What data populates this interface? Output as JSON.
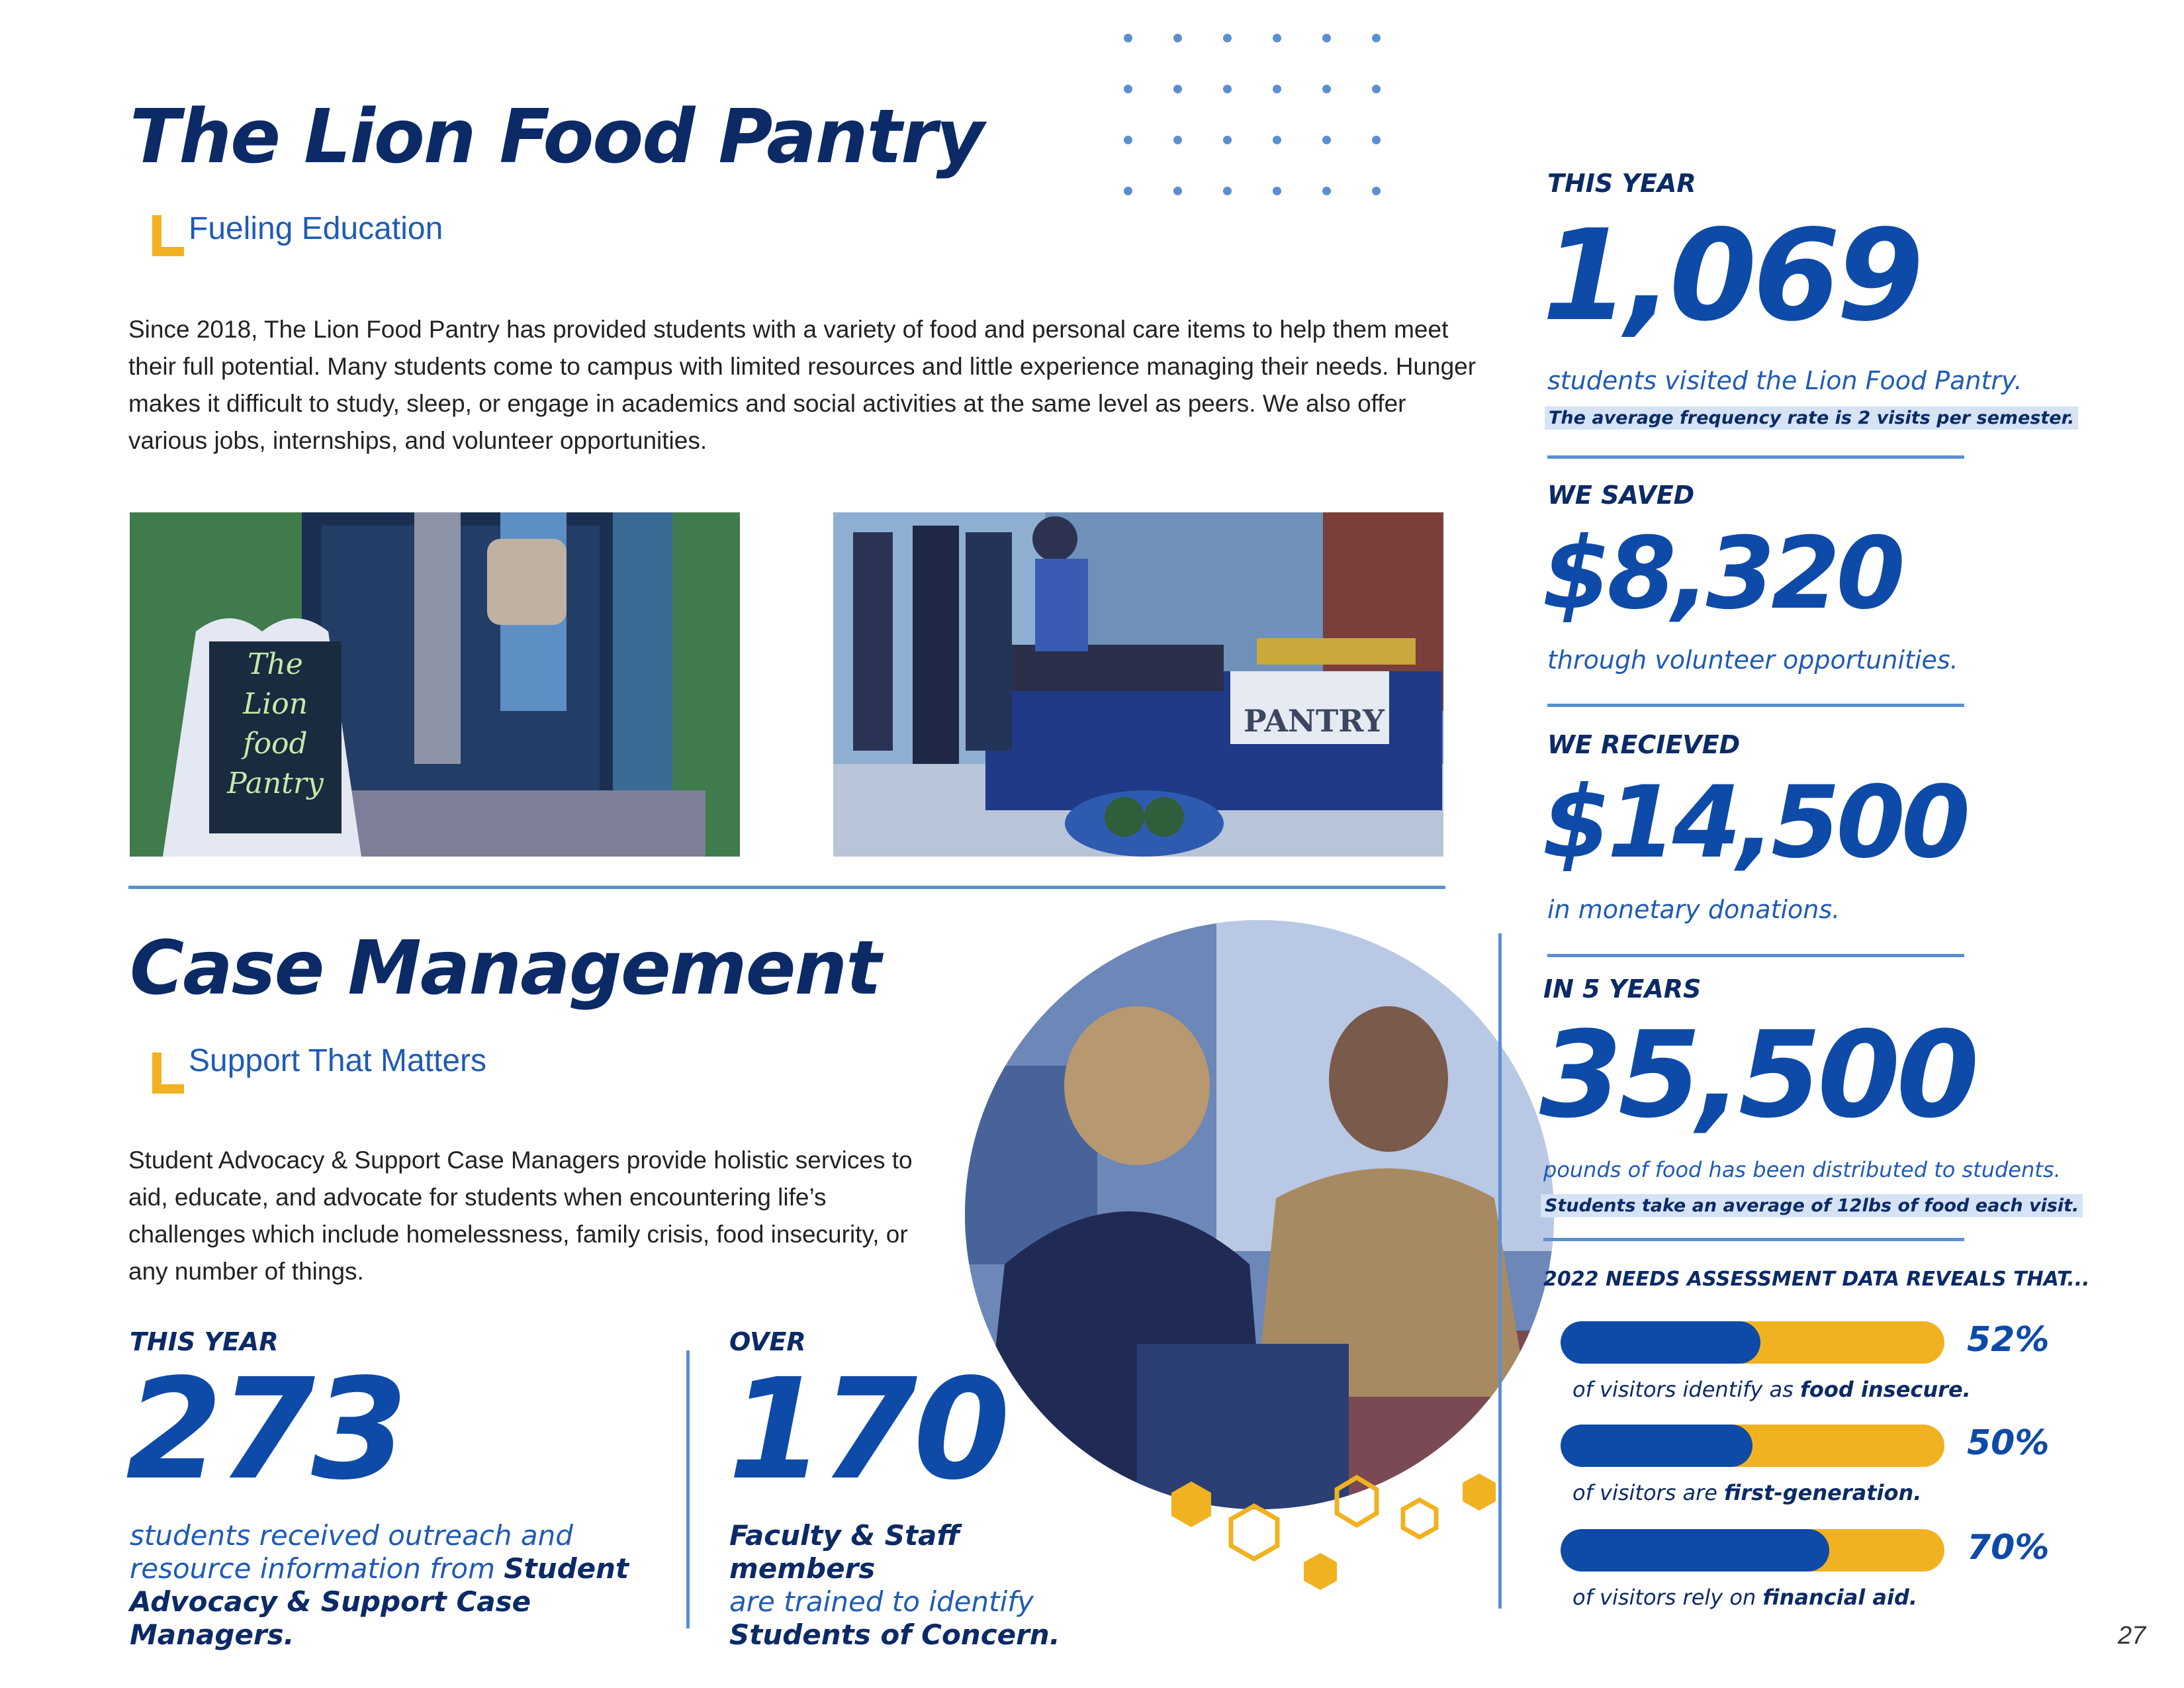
{
  "pantry": {
    "title": "The Lion Food Pantry",
    "subtitle": "Fueling Education",
    "body": "Since 2018, The Lion Food Pantry has provided students with a variety of food and personal care items to help them meet their full potential. Many students come to campus with limited resources and little experience managing their needs. Hunger makes it difficult to study, sleep, or engage in academics and social activities at the same level as peers. We also offer various jobs, internships, and volunteer opportunities.",
    "photo1_sign": [
      "The",
      "Lion",
      "food",
      "Pantry"
    ],
    "photo2_sign": "PANTRY"
  },
  "case": {
    "title": "Case Management",
    "subtitle": "Support That Matters",
    "body": "Student Advocacy & Support Case Managers provide holistic services to aid, educate, and advocate for students when encountering life’s challenges which include homelessness, family crisis, food insecurity, or any number of things.",
    "stat1": {
      "label": "THIS YEAR",
      "value": "273",
      "line1": "students received outreach and",
      "line2_plain": "resource information from ",
      "line2_bold": "Student",
      "line3_bold": "Advocacy & Support Case Managers."
    },
    "stat2": {
      "label": "OVER",
      "value": "170",
      "line1_bold": "Faculty & Staff members",
      "line2": "are trained to identify",
      "line3_bold": "Students of Concern."
    }
  },
  "stats": [
    {
      "label": "THIS YEAR",
      "value": "1,069",
      "desc": "students visited the Lion Food Pantry.",
      "note": "The average frequency rate is 2 visits per semester."
    },
    {
      "label": "WE SAVED",
      "value": "$8,320",
      "desc": "through volunteer opportunities."
    },
    {
      "label": "WE RECIEVED",
      "value": "$14,500",
      "desc": "in monetary donations."
    },
    {
      "label": "IN 5 YEARS",
      "value": "35,500",
      "desc": "pounds of food has been distributed to students.",
      "note": "Students take an average of 12lbs of food each visit."
    }
  ],
  "needs": {
    "heading": "2022 NEEDS ASSESSMENT DATA REVEALS THAT...",
    "items": [
      {
        "percent": 52,
        "label": "52%",
        "text": "of visitors identify as ",
        "bold": "food insecure."
      },
      {
        "percent": 50,
        "label": "50%",
        "text": "of visitors are ",
        "bold": "first-generation."
      },
      {
        "percent": 70,
        "label": "70%",
        "text": "of visitors rely on ",
        "bold": "financial aid."
      }
    ]
  },
  "colors": {
    "navy": "#0b2a66",
    "blue": "#0e4aa8",
    "gold": "#f1b221",
    "rule": "#5b8fd0"
  },
  "page_number": "27"
}
